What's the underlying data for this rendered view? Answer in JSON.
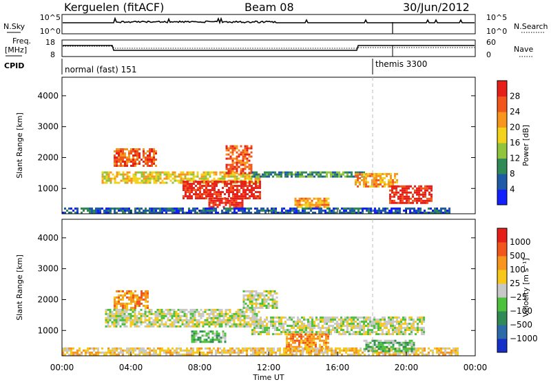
{
  "header": {
    "station": "Kerguelen (fitACF)",
    "beam": "Beam 08",
    "date": "30/Jun/2012"
  },
  "top_panels": {
    "nsky_label": "N.Sky",
    "nsearch_label": "N.Search",
    "freq_label_1": "Freq.",
    "freq_label_2": "[MHz]",
    "nave_label": "Nave",
    "cpid_label": "CPID",
    "nsky_ticks": [
      "10^5",
      "10^0"
    ],
    "nsearch_ticks": [
      "10^5",
      "10^0"
    ],
    "freq_ticks": [
      "18",
      "8"
    ],
    "nave_ticks": [
      "60",
      "0"
    ],
    "cpid_modes": [
      "normal (fast) 151",
      "themis 3300"
    ]
  },
  "chart_data": [
    {
      "type": "heatmap",
      "name": "power-panel",
      "ylabel": "Slant Range [km]",
      "y_ticks": [
        "1000",
        "2000",
        "3000",
        "4000"
      ],
      "ylim": [
        180,
        4600
      ],
      "xlim_hours": [
        0,
        24
      ],
      "colorbar_label": "Power [dB]",
      "colorbar_ticks": [
        "4",
        "8",
        "12",
        "16",
        "20",
        "24",
        "28"
      ],
      "colorbar_colors": [
        "#1020ff",
        "#1e5aa6",
        "#2f8a55",
        "#8fc43c",
        "#f2d21a",
        "#f7951c",
        "#f2561c",
        "#e62018"
      ],
      "regions": [
        {
          "t0": 3.0,
          "t1": 5.5,
          "r0": 1700,
          "r1": 2300,
          "level": 6
        },
        {
          "t0": 2.3,
          "t1": 11.5,
          "r0": 1200,
          "r1": 1550,
          "level": 4
        },
        {
          "t0": 7.0,
          "t1": 11.5,
          "r0": 650,
          "r1": 1250,
          "level": 7
        },
        {
          "t0": 8.5,
          "t1": 10.5,
          "r0": 400,
          "r1": 700,
          "level": 7
        },
        {
          "t0": 9.5,
          "t1": 11.0,
          "r0": 1500,
          "r1": 2400,
          "level": 6
        },
        {
          "t0": 11.0,
          "t1": 17.5,
          "r0": 1350,
          "r1": 1550,
          "level": 2
        },
        {
          "t0": 13.5,
          "t1": 15.5,
          "r0": 400,
          "r1": 700,
          "level": 5
        },
        {
          "t0": 17.0,
          "t1": 19.5,
          "r0": 1050,
          "r1": 1500,
          "level": 5
        },
        {
          "t0": 19.0,
          "t1": 21.5,
          "r0": 500,
          "r1": 1100,
          "level": 7
        },
        {
          "t0": 0.0,
          "t1": 22.5,
          "r0": 200,
          "r1": 380,
          "level": 1
        }
      ]
    },
    {
      "type": "heatmap",
      "name": "velocity-panel",
      "xlabel": "Time UT",
      "ylabel": "Slant Range [km]",
      "y_ticks": [
        "1000",
        "2000",
        "3000",
        "4000"
      ],
      "ylim": [
        180,
        4600
      ],
      "xlim_hours": [
        0,
        24
      ],
      "x_ticks": [
        "00:00",
        "04:00",
        "08:00",
        "12:00",
        "16:00",
        "20:00",
        "00:00"
      ],
      "colorbar_label": "Velocity [m s⁻¹]",
      "colorbar_ticks": [
        "1000",
        "500",
        "100",
        "25",
        "−25",
        "−100",
        "−500",
        "−1000"
      ],
      "colorbar_colors": [
        "#1430c8",
        "#2d6aa8",
        "#2f8a55",
        "#4cc23c",
        "#c8c8c8",
        "#f7c81a",
        "#f7951c",
        "#f2561c",
        "#e62018"
      ],
      "regions": [
        {
          "t0": 2.5,
          "t1": 11.5,
          "r0": 1100,
          "r1": 1700,
          "level": 4
        },
        {
          "t0": 11.0,
          "t1": 21.0,
          "r0": 900,
          "r1": 1450,
          "level": 4
        },
        {
          "t0": 3.0,
          "t1": 5.0,
          "r0": 1700,
          "r1": 2300,
          "level": 6
        },
        {
          "t0": 10.5,
          "t1": 12.5,
          "r0": 1700,
          "r1": 2300,
          "level": 4
        },
        {
          "t0": 7.5,
          "t1": 9.5,
          "r0": 600,
          "r1": 1000,
          "level": 3
        },
        {
          "t0": 13.0,
          "t1": 15.5,
          "r0": 350,
          "r1": 900,
          "level": 6
        },
        {
          "t0": 0.0,
          "t1": 23.0,
          "r0": 200,
          "r1": 450,
          "level": 5
        },
        {
          "t0": 17.5,
          "t1": 20.5,
          "r0": 350,
          "r1": 700,
          "level": 3
        }
      ]
    }
  ]
}
